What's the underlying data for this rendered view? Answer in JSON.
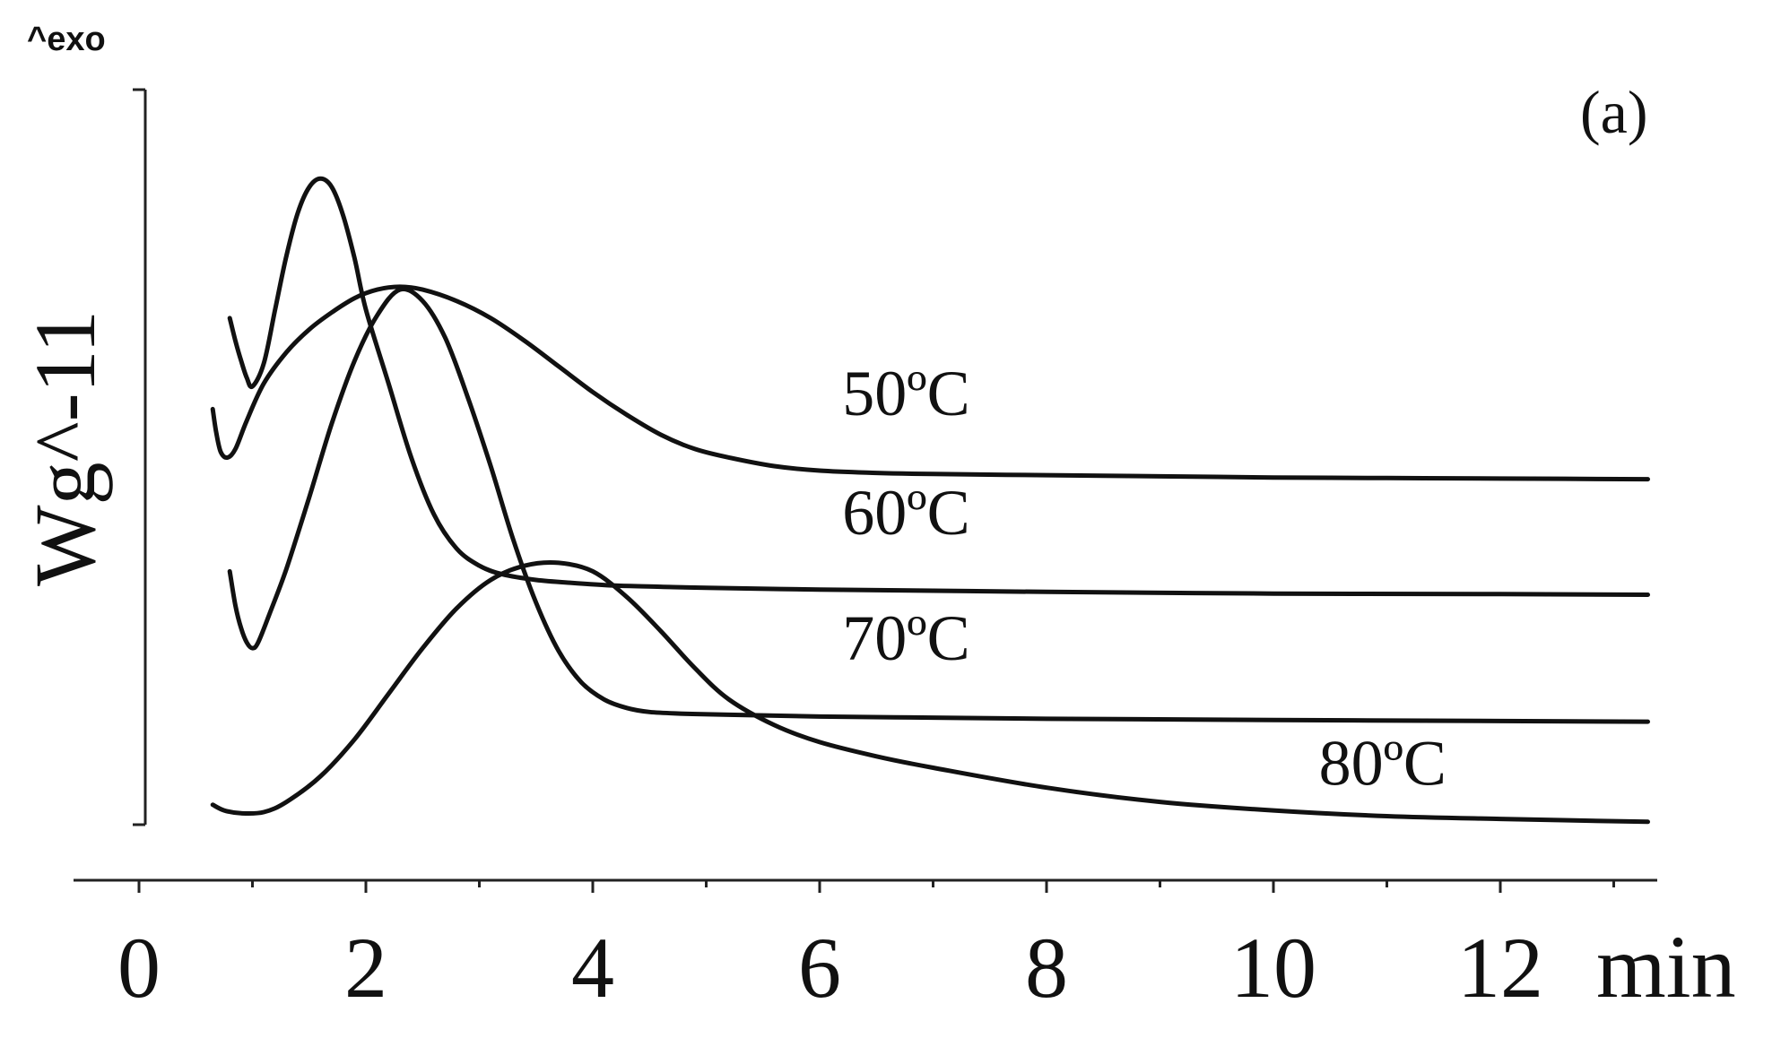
{
  "chart_data": {
    "type": "line",
    "panel_label": "(a)",
    "y_indicator": "^exo",
    "ylabel": "Wg^-11",
    "xlabel": "",
    "x_unit": "min",
    "xlim": [
      0,
      13.3
    ],
    "x_ticks": [
      "0",
      "2",
      "4",
      "6",
      "8",
      "10",
      "12"
    ],
    "x_minor_ticks": [
      1,
      3,
      5,
      7,
      9,
      11,
      13
    ],
    "grid": false,
    "series": [
      {
        "name": "50ºC",
        "x": [
          0.65,
          0.68,
          0.72,
          0.78,
          0.85,
          0.95,
          1.1,
          1.3,
          1.5,
          1.7,
          1.9,
          2.1,
          2.3,
          2.5,
          2.8,
          3.1,
          3.4,
          3.7,
          4.0,
          4.3,
          4.6,
          4.9,
          5.2,
          5.6,
          6.0,
          6.5,
          7.0,
          8.0,
          9.0,
          10.0,
          11.0,
          12.0,
          13.3
        ],
        "y": [
          7.3,
          6.9,
          6.55,
          6.45,
          6.6,
          7.1,
          7.75,
          8.3,
          8.7,
          9.0,
          9.25,
          9.4,
          9.45,
          9.4,
          9.2,
          8.9,
          8.5,
          8.05,
          7.6,
          7.2,
          6.85,
          6.6,
          6.45,
          6.3,
          6.22,
          6.18,
          6.16,
          6.14,
          6.12,
          6.1,
          6.09,
          6.08,
          6.07
        ]
      },
      {
        "name": "60ºC",
        "x": [
          0.8,
          0.85,
          0.9,
          0.95,
          1.0,
          1.1,
          1.2,
          1.3,
          1.4,
          1.5,
          1.6,
          1.7,
          1.8,
          1.9,
          2.0,
          2.2,
          2.4,
          2.6,
          2.8,
          3.0,
          3.2,
          3.5,
          3.8,
          4.2,
          4.6,
          5.0,
          6.0,
          7.0,
          8.0,
          10.0,
          12.0,
          13.3
        ],
        "y": [
          8.9,
          8.5,
          8.15,
          7.85,
          7.7,
          8.1,
          9.05,
          10.0,
          10.75,
          11.2,
          11.35,
          11.2,
          10.7,
          9.95,
          9.05,
          7.75,
          6.45,
          5.45,
          4.85,
          4.55,
          4.4,
          4.3,
          4.25,
          4.2,
          4.18,
          4.16,
          4.13,
          4.11,
          4.09,
          4.06,
          4.05,
          4.04
        ]
      },
      {
        "name": "70ºC",
        "x": [
          0.8,
          0.85,
          0.9,
          0.95,
          1.0,
          1.05,
          1.15,
          1.3,
          1.5,
          1.7,
          1.9,
          2.1,
          2.3,
          2.5,
          2.7,
          2.9,
          3.1,
          3.3,
          3.5,
          3.7,
          3.9,
          4.1,
          4.3,
          4.5,
          4.8,
          5.2,
          6.0,
          7.0,
          8.0,
          10.0,
          12.0,
          13.3
        ],
        "y": [
          4.45,
          3.85,
          3.45,
          3.2,
          3.1,
          3.2,
          3.7,
          4.5,
          5.75,
          7.05,
          8.15,
          8.95,
          9.4,
          9.2,
          8.55,
          7.5,
          6.3,
          5.0,
          3.9,
          3.05,
          2.5,
          2.2,
          2.05,
          1.98,
          1.95,
          1.93,
          1.9,
          1.88,
          1.86,
          1.84,
          1.82,
          1.81
        ]
      },
      {
        "name": "80ºC",
        "x": [
          0.65,
          0.75,
          0.9,
          1.1,
          1.3,
          1.6,
          1.9,
          2.2,
          2.5,
          2.8,
          3.1,
          3.4,
          3.7,
          4.0,
          4.3,
          4.6,
          4.9,
          5.2,
          5.6,
          6.0,
          6.5,
          7.0,
          8.0,
          9.0,
          10.0,
          11.0,
          12.0,
          13.3
        ],
        "y": [
          0.35,
          0.25,
          0.2,
          0.22,
          0.4,
          0.85,
          1.5,
          2.3,
          3.1,
          3.8,
          4.3,
          4.55,
          4.6,
          4.45,
          4.0,
          3.4,
          2.75,
          2.2,
          1.75,
          1.45,
          1.2,
          1.0,
          0.65,
          0.4,
          0.25,
          0.15,
          0.1,
          0.05
        ]
      }
    ],
    "curve_labels": [
      {
        "text": "50ºC",
        "x": 6.2,
        "y": 7.2
      },
      {
        "text": "60ºC",
        "x": 6.2,
        "y": 5.1
      },
      {
        "text": "70ºC",
        "x": 6.2,
        "y": 2.9
      },
      {
        "text": "80ºC",
        "x": 10.4,
        "y": 0.7
      }
    ]
  }
}
